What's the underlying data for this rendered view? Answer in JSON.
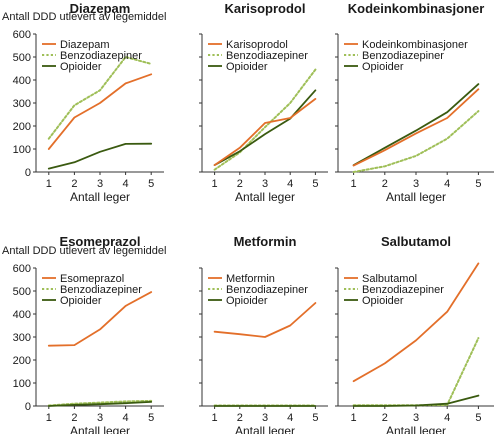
{
  "figure": {
    "ylabel": "Antall DDD utlevert av legemiddel",
    "xlabel": "Antall leger",
    "colors": {
      "orange": "#e36f2a",
      "green_dotted": "#9fbf58",
      "dark_green": "#3a5a10"
    }
  },
  "chart_data": [
    {
      "type": "line",
      "title": "Diazepam",
      "x": [
        1,
        2,
        3,
        4,
        5
      ],
      "xlabel": "Antall leger",
      "ylabel": "Antall DDD utlevert av legemiddel",
      "ylim": [
        0,
        600
      ],
      "yticks": [
        0,
        100,
        200,
        300,
        400,
        500,
        600
      ],
      "series": [
        {
          "name": "Diazepam",
          "style": "solid-orange",
          "values": [
            100,
            237,
            300,
            385,
            425
          ]
        },
        {
          "name": "Benzodiazepiner",
          "style": "dotted-green",
          "values": [
            145,
            290,
            355,
            500,
            470
          ]
        },
        {
          "name": "Opioider",
          "style": "solid-darkgreen",
          "values": [
            15,
            42,
            88,
            122,
            123
          ]
        }
      ]
    },
    {
      "type": "line",
      "title": "Karisoprodol",
      "x": [
        1,
        2,
        3,
        4,
        5
      ],
      "xlabel": "Antall leger",
      "ylim": [
        0,
        600
      ],
      "series": [
        {
          "name": "Karisoprodol",
          "style": "solid-orange",
          "values": [
            30,
            105,
            213,
            235,
            318
          ]
        },
        {
          "name": "Benzodiazepiner",
          "style": "dotted-green",
          "values": [
            10,
            85,
            195,
            300,
            445
          ]
        },
        {
          "name": "Opioider",
          "style": "solid-darkgreen",
          "values": [
            30,
            90,
            165,
            232,
            355
          ]
        }
      ]
    },
    {
      "type": "line",
      "title": "Kodeinkombinasjoner",
      "x": [
        1,
        2,
        3,
        4,
        5
      ],
      "xlabel": "Antall leger",
      "ylim": [
        0,
        600
      ],
      "series": [
        {
          "name": "Kodeinkombinasjoner",
          "style": "solid-orange",
          "values": [
            28,
            95,
            168,
            235,
            360
          ]
        },
        {
          "name": "Benzodiazepiner",
          "style": "dotted-green",
          "values": [
            0,
            25,
            70,
            145,
            265
          ]
        },
        {
          "name": "Opioider",
          "style": "solid-darkgreen",
          "values": [
            30,
            105,
            180,
            260,
            382
          ]
        }
      ]
    },
    {
      "type": "line",
      "title": "Esomeprazol",
      "x": [
        1,
        2,
        3,
        4,
        5
      ],
      "xlabel": "Antall leger",
      "ylabel": "Antall DDD utlevert av legemiddel",
      "ylim": [
        0,
        600
      ],
      "yticks": [
        0,
        100,
        200,
        300,
        400,
        500,
        600
      ],
      "series": [
        {
          "name": "Esomeprazol",
          "style": "solid-orange",
          "values": [
            262,
            265,
            333,
            435,
            495
          ]
        },
        {
          "name": "Benzodiazepiner",
          "style": "dotted-green",
          "values": [
            2,
            10,
            15,
            20,
            22
          ]
        },
        {
          "name": "Opioider",
          "style": "solid-darkgreen",
          "values": [
            0,
            5,
            8,
            12,
            18
          ]
        }
      ]
    },
    {
      "type": "line",
      "title": "Metformin",
      "x": [
        1,
        2,
        3,
        4,
        5
      ],
      "xlabel": "Antall leger",
      "ylim": [
        0,
        600
      ],
      "series": [
        {
          "name": "Metformin",
          "style": "solid-orange",
          "values": [
            323,
            312,
            300,
            350,
            448
          ]
        },
        {
          "name": "Benzodiazepiner",
          "style": "dotted-green",
          "values": [
            2,
            2,
            2,
            2,
            2
          ]
        },
        {
          "name": "Opioider",
          "style": "solid-darkgreen",
          "values": [
            0,
            0,
            0,
            0,
            0
          ]
        }
      ]
    },
    {
      "type": "line",
      "title": "Salbutamol",
      "x": [
        1,
        2,
        3,
        4,
        5
      ],
      "xlabel": "Antall leger",
      "ylim": [
        0,
        600
      ],
      "series": [
        {
          "name": "Salbutamol",
          "style": "solid-orange",
          "values": [
            108,
            185,
            285,
            410,
            620
          ]
        },
        {
          "name": "Benzodiazepiner",
          "style": "dotted-green",
          "values": [
            3,
            3,
            3,
            5,
            295
          ]
        },
        {
          "name": "Opioider",
          "style": "solid-darkgreen",
          "values": [
            0,
            0,
            2,
            10,
            45
          ]
        }
      ]
    }
  ]
}
